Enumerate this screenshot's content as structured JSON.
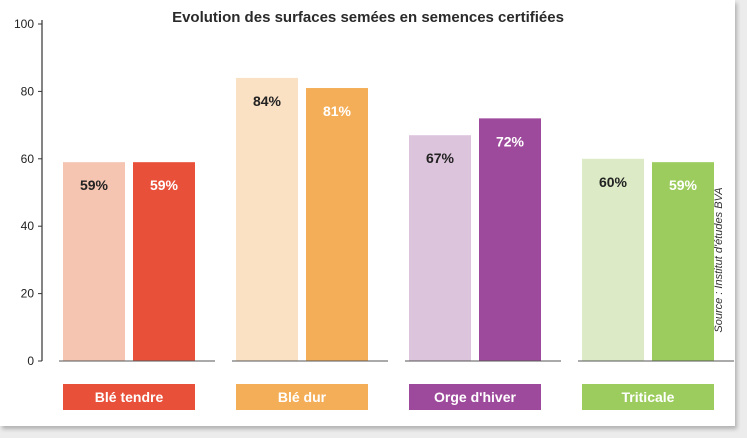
{
  "chart_data": {
    "type": "bar",
    "title": "Evolution des surfaces semées en semences certifiées",
    "source": "Source : Institut d'études BVA",
    "ylim": [
      0,
      100
    ],
    "yticks": [
      0,
      20,
      40,
      60,
      80,
      100
    ],
    "grid": false,
    "categories": [
      "Blé tendre",
      "Blé dur",
      "Orge d'hiver",
      "Triticale"
    ],
    "groups": [
      {
        "category": "Blé tendre",
        "color": "#e8503a",
        "bars": [
          {
            "value": 59,
            "label": "59%",
            "color": "#f5c5b2",
            "label_color": "#222222"
          },
          {
            "value": 59,
            "label": "59%",
            "color": "#e8503a",
            "label_color": "#ffffff"
          }
        ]
      },
      {
        "category": "Blé dur",
        "color": "#f5ae58",
        "bars": [
          {
            "value": 84,
            "label": "84%",
            "color": "#fbe1c4",
            "label_color": "#222222"
          },
          {
            "value": 81,
            "label": "81%",
            "color": "#f5ae58",
            "label_color": "#ffffff"
          }
        ]
      },
      {
        "category": "Orge d'hiver",
        "color": "#9e4a9c",
        "bars": [
          {
            "value": 67,
            "label": "67%",
            "color": "#dcc4dc",
            "label_color": "#222222"
          },
          {
            "value": 72,
            "label": "72%",
            "color": "#9e4a9c",
            "label_color": "#ffffff"
          }
        ]
      },
      {
        "category": "Triticale",
        "color": "#9ccc5e",
        "bars": [
          {
            "value": 60,
            "label": "60%",
            "color": "#dcebc6",
            "label_color": "#222222"
          },
          {
            "value": 59,
            "label": "59%",
            "color": "#9ccc5e",
            "label_color": "#ffffff"
          }
        ]
      }
    ]
  }
}
